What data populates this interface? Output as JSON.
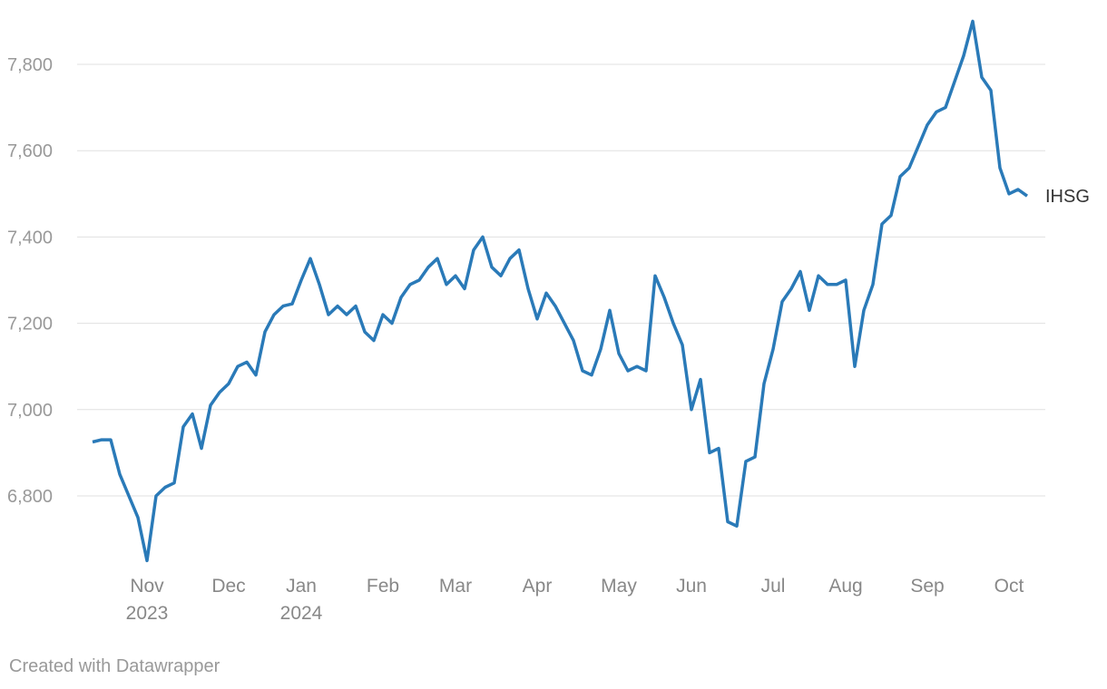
{
  "chart_data": {
    "type": "line",
    "categories": [
      null,
      null,
      null,
      null,
      null,
      null,
      "Nov\n2023",
      null,
      null,
      null,
      null,
      null,
      null,
      null,
      null,
      "Dec",
      null,
      null,
      null,
      null,
      null,
      null,
      null,
      "Jan\n2024",
      null,
      null,
      null,
      null,
      null,
      null,
      null,
      null,
      "Feb",
      null,
      null,
      null,
      null,
      null,
      null,
      null,
      "Mar",
      null,
      null,
      null,
      null,
      null,
      null,
      null,
      null,
      "Apr",
      null,
      null,
      null,
      null,
      null,
      null,
      null,
      null,
      "May",
      null,
      null,
      null,
      null,
      null,
      null,
      null,
      "Jun",
      null,
      null,
      null,
      null,
      null,
      null,
      null,
      null,
      "Jul",
      null,
      null,
      null,
      null,
      null,
      null,
      null,
      "Aug",
      null,
      null,
      null,
      null,
      null,
      null,
      null,
      null,
      "Sep",
      null,
      null,
      null,
      null,
      null,
      null,
      null,
      null,
      "Oct",
      null,
      null
    ],
    "series": [
      {
        "name": "IHSG",
        "color": "#2a7ab8",
        "values": [
          6925,
          6930,
          6930,
          6850,
          6800,
          6750,
          6650,
          6800,
          6820,
          6830,
          6960,
          6990,
          6910,
          7010,
          7040,
          7060,
          7100,
          7110,
          7080,
          7180,
          7220,
          7240,
          7245,
          7300,
          7350,
          7290,
          7220,
          7240,
          7220,
          7240,
          7180,
          7160,
          7220,
          7200,
          7260,
          7290,
          7300,
          7330,
          7350,
          7290,
          7310,
          7280,
          7370,
          7400,
          7330,
          7310,
          7350,
          7370,
          7280,
          7210,
          7270,
          7240,
          7200,
          7160,
          7090,
          7080,
          7140,
          7230,
          7130,
          7090,
          7100,
          7090,
          7310,
          7260,
          7200,
          7150,
          7000,
          7070,
          6900,
          6910,
          6740,
          6730,
          6880,
          6890,
          7060,
          7140,
          7250,
          7280,
          7320,
          7230,
          7310,
          7290,
          7290,
          7300,
          7100,
          7230,
          7290,
          7430,
          7450,
          7540,
          7560,
          7610,
          7660,
          7690,
          7700,
          7760,
          7820,
          7900,
          7770,
          7740,
          7560,
          7500,
          7510,
          7495
        ]
      }
    ],
    "ylim": [
      6630,
      7920
    ],
    "yticks": [
      {
        "value": 6800,
        "label": "6,800"
      },
      {
        "value": 7000,
        "label": "7,000"
      },
      {
        "value": 7200,
        "label": "7,200"
      },
      {
        "value": 7400,
        "label": "7,400"
      },
      {
        "value": 7600,
        "label": "7,600"
      },
      {
        "value": 7800,
        "label": "7,800"
      }
    ],
    "grid": true,
    "footer": "Created with Datawrapper"
  }
}
